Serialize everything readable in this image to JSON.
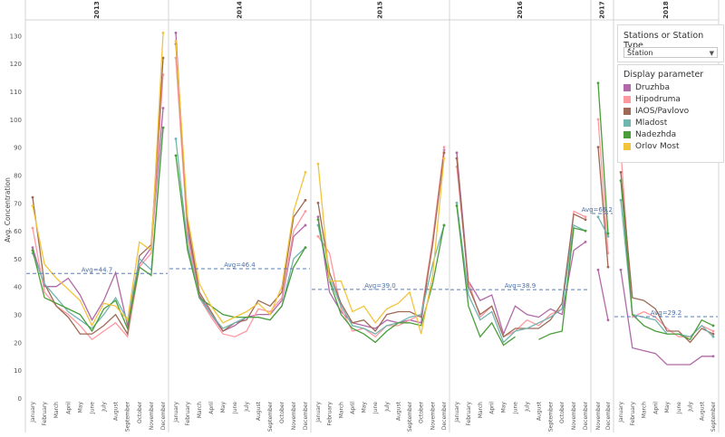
{
  "filter": {
    "title": "Stations or Station Type",
    "value": "Station"
  },
  "legend": {
    "title": "Display parameter",
    "items": [
      {
        "name": "Druzhba",
        "color": "#b06aa8"
      },
      {
        "name": "Hipodruma",
        "color": "#ff99a0"
      },
      {
        "name": "IAOS/Pavlovo",
        "color": "#9e6a55"
      },
      {
        "name": "Mladost",
        "color": "#72b4b0"
      },
      {
        "name": "Nadezhda",
        "color": "#4a9e3a"
      },
      {
        "name": "Orlov Most",
        "color": "#f2c43c"
      }
    ]
  },
  "chart_data": {
    "type": "line",
    "ylabel": "Avg. Concentration",
    "ylim": [
      0,
      135
    ],
    "yticks": [
      0,
      10,
      20,
      30,
      40,
      50,
      60,
      70,
      80,
      90,
      100,
      110,
      120,
      130
    ],
    "grid": false,
    "months": [
      "January",
      "February",
      "March",
      "April",
      "May",
      "June",
      "July",
      "August",
      "September",
      "October",
      "November",
      "December"
    ],
    "panels": [
      {
        "year": "2013",
        "avg": 44.7,
        "avg_label": "Avg=44.7",
        "series": {
          "Druzhba": [
            54,
            40,
            40,
            43,
            37,
            28,
            35,
            45,
            26,
            48,
            54,
            104
          ],
          "Hipodruma": [
            61,
            38,
            33,
            30,
            26,
            21,
            24,
            27,
            22,
            47,
            52,
            116
          ],
          "IAOS/Pavlovo": [
            72,
            41,
            33,
            29,
            23,
            23,
            26,
            30,
            23,
            51,
            55,
            122
          ],
          "Mladost": [
            52,
            41,
            36,
            31,
            28,
            25,
            30,
            36,
            28,
            50,
            46,
            97
          ],
          "Nadezhda": [
            53,
            36,
            34,
            32,
            30,
            24,
            32,
            35,
            25,
            47,
            44,
            97
          ],
          "Orlov Most": [
            69,
            48,
            43,
            39,
            35,
            26,
            34,
            33,
            28,
            56,
            53,
            131
          ]
        }
      },
      {
        "year": "2014",
        "avg": 46.4,
        "avg_label": "Avg=46.4",
        "series": {
          "Druzhba": [
            131,
            60,
            37,
            30,
            24,
            26,
            29,
            30,
            30,
            35,
            58,
            62
          ],
          "Hipodruma": [
            122,
            58,
            36,
            29,
            23,
            22,
            24,
            32,
            31,
            36,
            60,
            67
          ],
          "IAOS/Pavlovo": [
            127,
            63,
            38,
            31,
            24,
            27,
            28,
            35,
            33,
            38,
            65,
            71
          ],
          "Mladost": [
            93,
            55,
            36,
            30,
            25,
            27,
            29,
            29,
            28,
            33,
            50,
            54
          ],
          "Nadezhda": [
            87,
            53,
            36,
            33,
            30,
            29,
            29,
            29,
            28,
            33,
            47,
            54
          ],
          "Orlov Most": [
            128,
            65,
            41,
            33,
            27,
            29,
            31,
            34,
            30,
            40,
            67,
            81
          ]
        }
      },
      {
        "year": "2015",
        "avg": 39.0,
        "avg_label": "Avg=39.0",
        "series": {
          "Druzhba": [
            65,
            38,
            31,
            27,
            26,
            25,
            28,
            27,
            28,
            27,
            57,
            89
          ],
          "Hipodruma": [
            58,
            52,
            32,
            24,
            25,
            22,
            26,
            26,
            28,
            30,
            57,
            90
          ],
          "IAOS/Pavlovo": [
            70,
            45,
            34,
            27,
            28,
            24,
            30,
            31,
            31,
            29,
            55,
            88
          ],
          "Mladost": [
            62,
            43,
            33,
            26,
            25,
            23,
            26,
            27,
            29,
            30,
            48,
            62
          ],
          "Nadezhda": [
            64,
            42,
            30,
            25,
            23,
            20,
            24,
            27,
            27,
            26,
            41,
            62
          ],
          "Orlov Most": [
            84,
            42,
            42,
            31,
            33,
            27,
            32,
            34,
            38,
            23,
            44,
            86
          ]
        }
      },
      {
        "year": "2016",
        "avg": 38.9,
        "avg_label": "Avg=38.9",
        "series": {
          "Druzhba": [
            88,
            42,
            35,
            37,
            23,
            33,
            30,
            29,
            32,
            30,
            53,
            56
          ],
          "Hipodruma": [
            83,
            42,
            29,
            33,
            22,
            24,
            28,
            26,
            30,
            32,
            67,
            65
          ],
          "IAOS/Pavlovo": [
            86,
            40,
            30,
            33,
            22,
            25,
            25,
            25,
            28,
            34,
            66,
            64
          ],
          "Mladost": [
            70,
            37,
            28,
            31,
            20,
            24,
            25,
            27,
            29,
            32,
            62,
            60
          ],
          "Nadezhda": [
            69,
            33,
            22,
            27,
            19,
            22,
            null,
            21,
            23,
            24,
            61,
            60
          ],
          "Orlov Most": [
            null,
            null,
            null,
            null,
            null,
            null,
            null,
            null,
            null,
            null,
            null,
            null
          ]
        }
      },
      {
        "year": "2017",
        "avg": 66.2,
        "avg_label": "Avg=66.2",
        "months": [
          "November",
          "December"
        ],
        "series": {
          "Druzhba": [
            46,
            28
          ],
          "Hipodruma": [
            100,
            52
          ],
          "IAOS/Pavlovo": [
            90,
            47
          ],
          "Mladost": [
            65,
            58
          ],
          "Nadezhda": [
            113,
            59
          ],
          "Orlov Most": [
            null,
            null
          ]
        }
      },
      {
        "year": "2018",
        "avg": 29.2,
        "avg_label": "Avg=29.2",
        "months": [
          "January",
          "February",
          "March",
          "April",
          "May",
          "June",
          "July",
          "August",
          "September"
        ],
        "series": {
          "Druzhba": [
            46,
            18,
            17,
            16,
            12,
            12,
            12,
            15,
            15
          ],
          "Hipodruma": [
            89,
            29,
            31,
            29,
            25,
            22,
            22,
            26,
            24
          ],
          "IAOS/Pavlovo": [
            81,
            36,
            35,
            32,
            24,
            24,
            20,
            25,
            23
          ],
          "Mladost": [
            71,
            30,
            29,
            28,
            23,
            23,
            22,
            26,
            22
          ],
          "Nadezhda": [
            78,
            30,
            26,
            24,
            23,
            23,
            21,
            28,
            26
          ],
          "Orlov Most": [
            null,
            null,
            null,
            null,
            null,
            null,
            null,
            null,
            null
          ]
        }
      }
    ]
  }
}
